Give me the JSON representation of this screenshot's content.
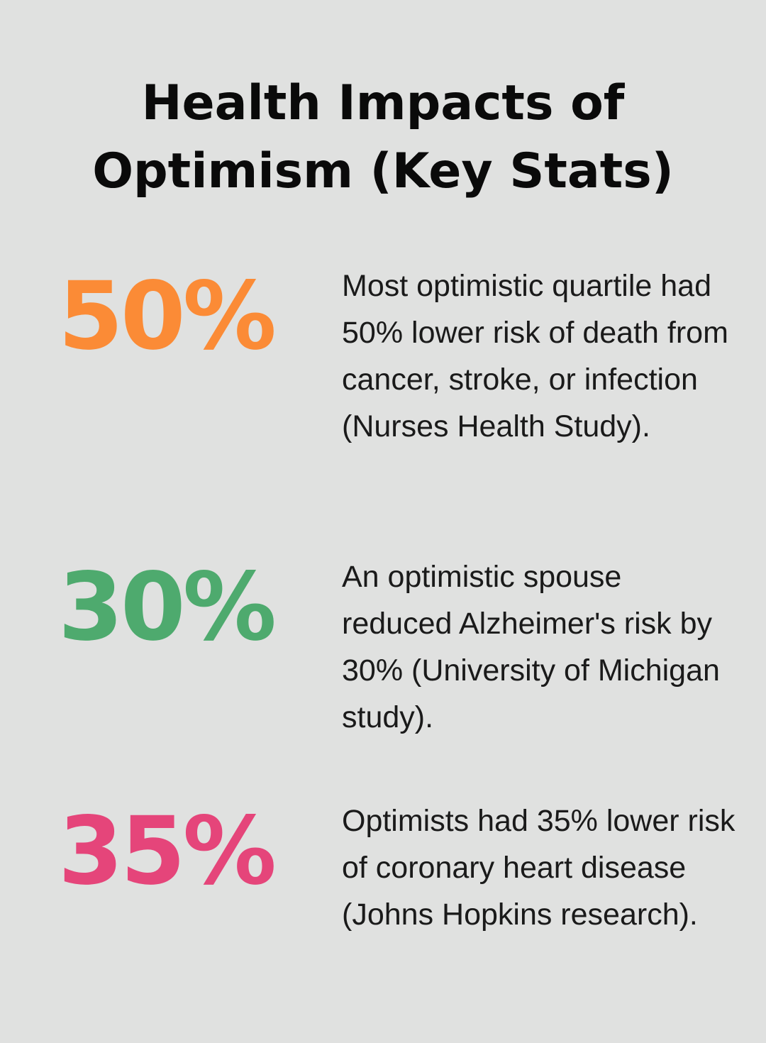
{
  "title_line1": "Health Impacts of",
  "title_line2": "Optimism (Key Stats)",
  "stats": [
    {
      "value": "50%",
      "color": "#fb8b36",
      "description": "Most optimistic quartile had 50% lower risk of death from cancer, stroke, or infection (Nurses Health Study)."
    },
    {
      "value": "30%",
      "color": "#4eaa6e",
      "description": "An optimistic spouse reduced Alzheimer's risk by 30% (University of Michigan study)."
    },
    {
      "value": "35%",
      "color": "#e5457a",
      "description": "Optimists had 35% lower risk of coronary heart disease (Johns Hopkins research)."
    }
  ]
}
